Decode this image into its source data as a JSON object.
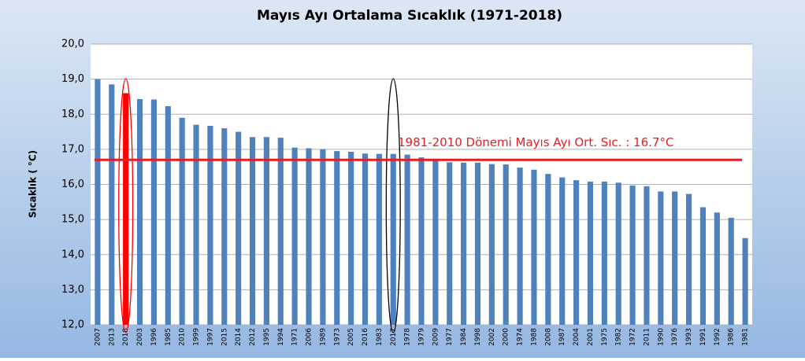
{
  "chart_data": {
    "type": "bar",
    "title": "Mayıs Ayı Ortalama Sıcaklık (1971-2018)",
    "y_label": "Sıcaklık ( °C)",
    "categories": [
      "2007",
      "2013",
      "2018",
      "2003",
      "1996",
      "1985",
      "2010",
      "1999",
      "1997",
      "2015",
      "2014",
      "2012",
      "1995",
      "1994",
      "1971",
      "2006",
      "1989",
      "1973",
      "2005",
      "2016",
      "1983",
      "2017",
      "1978",
      "1979",
      "2009",
      "1977",
      "1984",
      "1998",
      "2002",
      "2000",
      "1974",
      "1988",
      "2008",
      "1987",
      "2004",
      "2001",
      "1975",
      "1982",
      "1972",
      "2011",
      "1990",
      "1976",
      "1993",
      "1991",
      "1992",
      "1986",
      "1981"
    ],
    "values": [
      19.0,
      18.85,
      18.6,
      18.43,
      18.42,
      18.23,
      17.9,
      17.7,
      17.67,
      17.6,
      17.5,
      17.35,
      17.35,
      17.33,
      17.05,
      17.03,
      17.0,
      16.95,
      16.93,
      16.88,
      16.87,
      16.87,
      16.85,
      16.77,
      16.7,
      16.63,
      16.62,
      16.62,
      16.58,
      16.57,
      16.48,
      16.42,
      16.3,
      16.2,
      16.12,
      16.08,
      16.08,
      16.05,
      15.97,
      15.95,
      15.8,
      15.8,
      15.73,
      15.35,
      15.2,
      15.05,
      14.47
    ],
    "colors": [
      "#4f81bd",
      "#4f81bd",
      "#ff0000",
      "#4f81bd",
      "#4f81bd",
      "#4f81bd",
      "#4f81bd",
      "#4f81bd",
      "#4f81bd",
      "#4f81bd",
      "#4f81bd",
      "#4f81bd",
      "#4f81bd",
      "#4f81bd",
      "#4f81bd",
      "#4f81bd",
      "#4f81bd",
      "#4f81bd",
      "#4f81bd",
      "#4f81bd",
      "#4f81bd",
      "#4f81bd",
      "#4f81bd",
      "#4f81bd",
      "#4f81bd",
      "#4f81bd",
      "#4f81bd",
      "#4f81bd",
      "#4f81bd",
      "#4f81bd",
      "#4f81bd",
      "#4f81bd",
      "#4f81bd",
      "#4f81bd",
      "#4f81bd",
      "#4f81bd",
      "#4f81bd",
      "#4f81bd",
      "#4f81bd",
      "#4f81bd",
      "#4f81bd",
      "#4f81bd",
      "#4f81bd",
      "#4f81bd",
      "#4f81bd",
      "#4f81bd",
      "#4f81bd"
    ],
    "ylim": [
      12,
      20
    ],
    "yticks": [
      {
        "value": 12,
        "label": "12,0"
      },
      {
        "value": 13,
        "label": "13,0"
      },
      {
        "value": 14,
        "label": "14,0"
      },
      {
        "value": 15,
        "label": "15,0"
      },
      {
        "value": 16,
        "label": "16,0"
      },
      {
        "value": 17,
        "label": "17,0"
      },
      {
        "value": 18,
        "label": "18,0"
      },
      {
        "value": 19,
        "label": "19,0"
      },
      {
        "value": 20,
        "label": "20,0"
      }
    ],
    "grid": true,
    "reference_line": {
      "value": 16.7,
      "label": "1981-2010 Dönemi  Mayıs Ayı Ort. Sıc. : 16.7°C",
      "color": "#e31e24"
    },
    "circled": [
      {
        "category": "2018",
        "color": "#ff0000"
      },
      {
        "category": "2017",
        "color": "#000000"
      }
    ]
  }
}
